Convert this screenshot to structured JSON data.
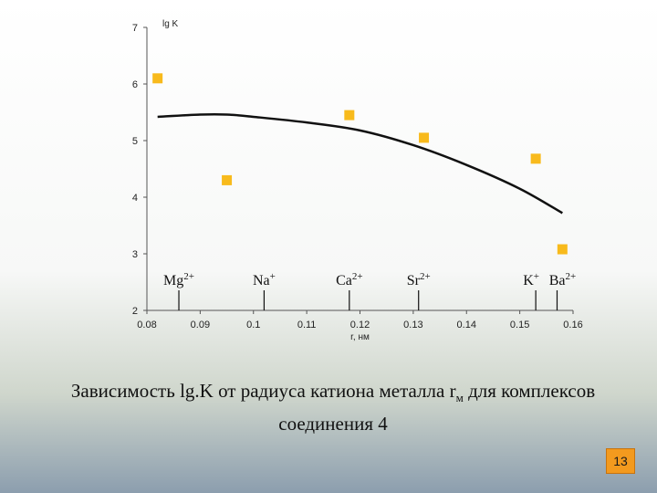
{
  "chart_data": {
    "type": "scatter",
    "ylabel": "lg K",
    "xlabel": "r, нм",
    "xlim": [
      0.08,
      0.16
    ],
    "ylim": [
      2,
      7
    ],
    "x_ticks": [
      0.08,
      0.09,
      0.1,
      0.11,
      0.12,
      0.13,
      0.14,
      0.15,
      0.16
    ],
    "x_tick_labels": [
      "0.08",
      "0.09",
      "0.1",
      "0.11",
      "0.12",
      "0.13",
      "0.14",
      "0.15",
      "0.16"
    ],
    "y_ticks": [
      2,
      3,
      4,
      5,
      6,
      7
    ],
    "y_tick_labels": [
      "2",
      "3",
      "4",
      "5",
      "6",
      "7"
    ],
    "points": [
      {
        "x": 0.082,
        "y": 6.1
      },
      {
        "x": 0.095,
        "y": 4.3
      },
      {
        "x": 0.118,
        "y": 5.45
      },
      {
        "x": 0.132,
        "y": 5.05
      },
      {
        "x": 0.153,
        "y": 4.68
      },
      {
        "x": 0.158,
        "y": 3.08
      }
    ],
    "trend_line": {
      "x": [
        0.082,
        0.09,
        0.095,
        0.1,
        0.11,
        0.12,
        0.13,
        0.14,
        0.15,
        0.158
      ],
      "y": [
        5.42,
        5.46,
        5.46,
        5.42,
        5.32,
        5.18,
        4.92,
        4.57,
        4.15,
        3.72
      ]
    },
    "ion_markers": [
      {
        "symbol": "Mg",
        "charge": "2+",
        "x": 0.086
      },
      {
        "symbol": "Na",
        "charge": "+",
        "x": 0.102
      },
      {
        "symbol": "Ca",
        "charge": "2+",
        "x": 0.118
      },
      {
        "symbol": "Sr",
        "charge": "2+",
        "x": 0.131
      },
      {
        "symbol": "K",
        "charge": "+",
        "x": 0.153
      },
      {
        "symbol": "Ba",
        "charge": "2+",
        "x": 0.157
      }
    ],
    "grid": false,
    "legend": "none"
  },
  "colors": {
    "points": "#f8ba1c",
    "trend_line": "#111111",
    "axis": "#555555",
    "page_badge": "#f39a1e"
  },
  "caption": {
    "line1_part1": "Зависимость lg.K от радиуса катиона металла r",
    "line1_sub": "м",
    "line1_part2": " для комплексов",
    "line2": "соединения 4"
  },
  "page_number": "13"
}
